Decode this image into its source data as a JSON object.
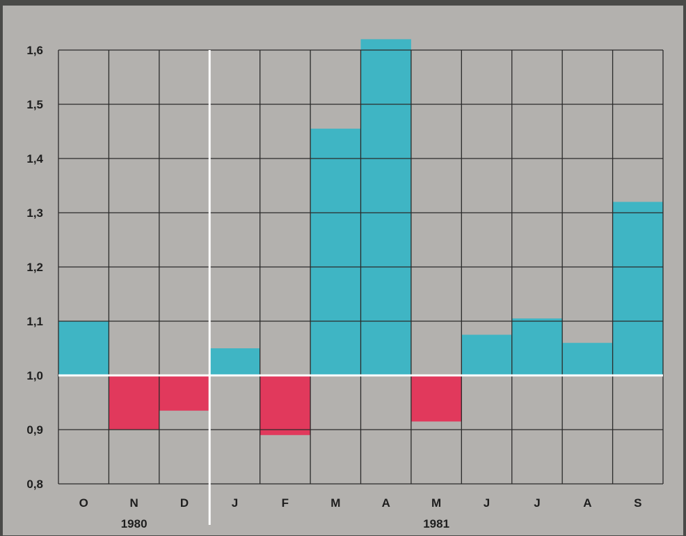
{
  "chart_data": {
    "type": "bar",
    "baseline": 1.0,
    "categories": [
      "O",
      "N",
      "D",
      "J",
      "F",
      "M",
      "A",
      "M",
      "J",
      "J",
      "A",
      "S"
    ],
    "values": [
      1.1,
      0.9,
      0.935,
      1.05,
      0.89,
      1.455,
      1.62,
      0.915,
      1.075,
      1.105,
      1.06,
      1.32
    ],
    "year_labels": [
      {
        "label": "1980",
        "center_category_index": 1
      },
      {
        "label": "1981",
        "center_category_index": 7
      }
    ],
    "year_divider_after_index": 2,
    "yticks": [
      "1,6",
      "1,5",
      "1,4",
      "1,3",
      "1,2",
      "1,1",
      "1,0",
      "0,9",
      "0,8"
    ],
    "ytick_values": [
      1.6,
      1.5,
      1.4,
      1.3,
      1.2,
      1.1,
      1.0,
      0.9,
      0.8
    ],
    "ylim": [
      0.8,
      1.6
    ],
    "grid": true,
    "colors": {
      "above": "#3fb5c4",
      "below": "#e1395c",
      "background": "#b3b1ae",
      "grid": "#2a2a2a",
      "baseline": "#ffffff",
      "frame": "#4a4a48"
    }
  }
}
